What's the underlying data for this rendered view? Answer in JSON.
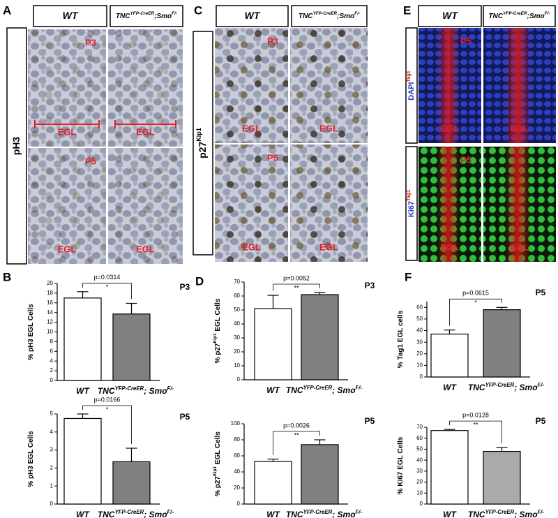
{
  "panel_letters": [
    "A",
    "B",
    "C",
    "D",
    "E",
    "F"
  ],
  "image_panels": [
    {
      "headers": [
        [
          "WT"
        ],
        [
          "TNC",
          "YFP-CreER",
          ";Smo",
          "F/-"
        ]
      ],
      "row_labels": [
        [
          "pH3"
        ]
      ],
      "rows": [
        {
          "stage": "P3",
          "layers": [
            "EGL",
            "EGL"
          ]
        },
        {
          "stage": "P5",
          "layers": [
            "EGL",
            "EGL"
          ]
        }
      ]
    },
    {
      "headers": [
        [
          "WT"
        ],
        [
          "TNC",
          "YFP-CreER",
          ";Smo",
          "F/-"
        ]
      ],
      "row_labels": [
        [
          "p27",
          "Kip1"
        ]
      ],
      "rows": [
        {
          "stage": "P3",
          "layers": [
            "EGL",
            "EGL"
          ]
        },
        {
          "stage": "P5",
          "layers": [
            "EGL",
            "EGL"
          ]
        }
      ]
    },
    {
      "headers": [
        [
          "WT"
        ],
        [
          "TNC",
          "YFP-CreER",
          ";Smo",
          "F/-"
        ]
      ],
      "row_labels": [
        [
          "DAPI",
          "Tag1"
        ],
        [
          "Ki67",
          "Tag1"
        ]
      ],
      "rows": [
        {
          "stage": "P5",
          "layers": [
            "EGL",
            "EGL"
          ]
        },
        {
          "stage": "P5",
          "layers": [
            "EGL",
            "EGL"
          ]
        }
      ]
    }
  ],
  "chart_data": [
    {
      "type": "bar",
      "title": "P3",
      "ylabel": [
        "% pH3 EGL Cells"
      ],
      "categories": [
        [
          "WT"
        ],
        [
          "TNC",
          "YFP-CreER",
          "; Smo",
          "F/-"
        ]
      ],
      "values": [
        17,
        13.7
      ],
      "errors": [
        1.3,
        2.2
      ],
      "colors": [
        "#ffffff",
        "#808080"
      ],
      "ylim": [
        0,
        20
      ],
      "yticks": [
        0,
        2,
        4,
        6,
        8,
        10,
        12,
        14,
        16,
        18,
        20
      ],
      "annotation": {
        "text": "p=0.0314",
        "stars": "*"
      }
    },
    {
      "type": "bar",
      "title": "P5",
      "ylabel": [
        "% pH3 EGL Cells"
      ],
      "categories": [
        [
          "WT"
        ],
        [
          "TNC",
          "YFP-CreER",
          "; Smo",
          "F/-"
        ]
      ],
      "values": [
        4.75,
        2.35
      ],
      "errors": [
        0.25,
        0.75
      ],
      "colors": [
        "#ffffff",
        "#808080"
      ],
      "ylim": [
        0,
        5
      ],
      "yticks": [
        0,
        1,
        2,
        3,
        4,
        5
      ],
      "annotation": {
        "text": "p=0.0166",
        "stars": "*"
      }
    },
    {
      "type": "bar",
      "title": "P3",
      "ylabel": [
        "% p27",
        "Kip1",
        " EGL Cells"
      ],
      "categories": [
        [
          "WT"
        ],
        [
          "TNC",
          "YFP-CreER",
          "; Smo",
          "F/-"
        ]
      ],
      "values": [
        51,
        61
      ],
      "errors": [
        9.5,
        1.5
      ],
      "colors": [
        "#ffffff",
        "#808080"
      ],
      "ylim": [
        0,
        70
      ],
      "yticks": [
        0,
        10,
        20,
        30,
        40,
        50,
        60,
        70
      ],
      "annotation": {
        "text": "p=0.0052",
        "stars": "**"
      }
    },
    {
      "type": "bar",
      "title": "P5",
      "ylabel": [
        "% p27",
        "Kip1",
        " EGL Cells"
      ],
      "categories": [
        [
          "WT"
        ],
        [
          "TNC",
          "YFP-CreER",
          "; Smo",
          "F/-"
        ]
      ],
      "values": [
        53,
        74
      ],
      "errors": [
        3,
        6
      ],
      "colors": [
        "#ffffff",
        "#808080"
      ],
      "ylim": [
        0,
        100
      ],
      "yticks": [
        0,
        20,
        40,
        60,
        80,
        100
      ],
      "annotation": {
        "text": "p=0.0026",
        "stars": "**"
      }
    },
    {
      "type": "bar",
      "title": "P5",
      "ylabel": [
        "% Tag1 EGL cells"
      ],
      "categories": [
        [
          "WT"
        ],
        [
          "TNC",
          "YFP-CreER",
          "; Smo",
          "F/-"
        ]
      ],
      "values": [
        37,
        58
      ],
      "errors": [
        3.5,
        2
      ],
      "colors": [
        "#ffffff",
        "#808080"
      ],
      "ylim": [
        0,
        65
      ],
      "yticks": [
        0,
        10,
        20,
        30,
        40,
        50,
        60
      ],
      "annotation": {
        "text": "p=0.0615",
        "stars": "*"
      }
    },
    {
      "type": "bar",
      "title": "P5",
      "ylabel": [
        "% Ki67 EGL Cells"
      ],
      "categories": [
        [
          "WT"
        ],
        [
          "TNC",
          "YFP-CreER",
          "; Smo",
          "F/-"
        ]
      ],
      "values": [
        67,
        48
      ],
      "errors": [
        1,
        3.5
      ],
      "colors": [
        "#ffffff",
        "#aaaaaa"
      ],
      "ylim": [
        0,
        70
      ],
      "yticks": [
        0,
        10,
        20,
        30,
        40,
        50,
        60,
        70
      ],
      "annotation": {
        "text": "p=0.0128",
        "stars": "**"
      }
    }
  ]
}
